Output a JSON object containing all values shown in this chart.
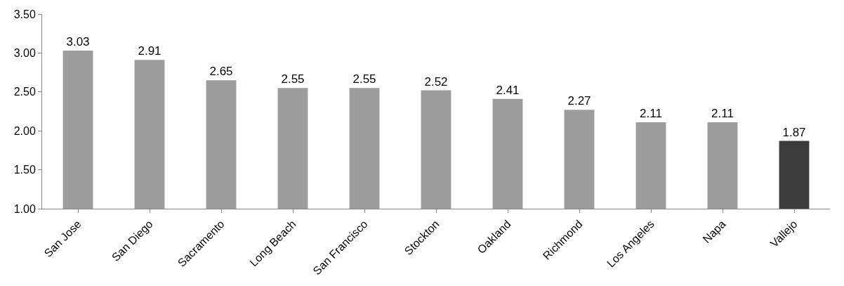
{
  "chart_data": {
    "type": "bar",
    "categories": [
      "San Jose",
      "San Diego",
      "Sacramento",
      "Long Beach",
      "San Francisco",
      "Stockton",
      "Oakland",
      "Richmond",
      "Los Angeles",
      "Napa",
      "Vallejo"
    ],
    "values": [
      3.03,
      2.91,
      2.65,
      2.55,
      2.55,
      2.52,
      2.41,
      2.27,
      2.11,
      2.11,
      1.87
    ],
    "colors": [
      "#9c9c9c",
      "#9c9c9c",
      "#9c9c9c",
      "#9c9c9c",
      "#9c9c9c",
      "#9c9c9c",
      "#9c9c9c",
      "#9c9c9c",
      "#9c9c9c",
      "#9c9c9c",
      "#3c3c3c"
    ],
    "value_labels": [
      "3.03",
      "2.91",
      "2.65",
      "2.55",
      "2.55",
      "2.52",
      "2.41",
      "2.27",
      "2.11",
      "2.11",
      "1.87"
    ],
    "ylim": [
      1.0,
      3.5
    ],
    "yticks": [
      {
        "value": 1.0,
        "label": "1.00"
      },
      {
        "value": 1.5,
        "label": "1.50"
      },
      {
        "value": 2.0,
        "label": "2.00"
      },
      {
        "value": 2.5,
        "label": "2.50"
      },
      {
        "value": 3.0,
        "label": "3.00"
      },
      {
        "value": 3.5,
        "label": "3.50"
      }
    ],
    "orientation": "vertical"
  }
}
